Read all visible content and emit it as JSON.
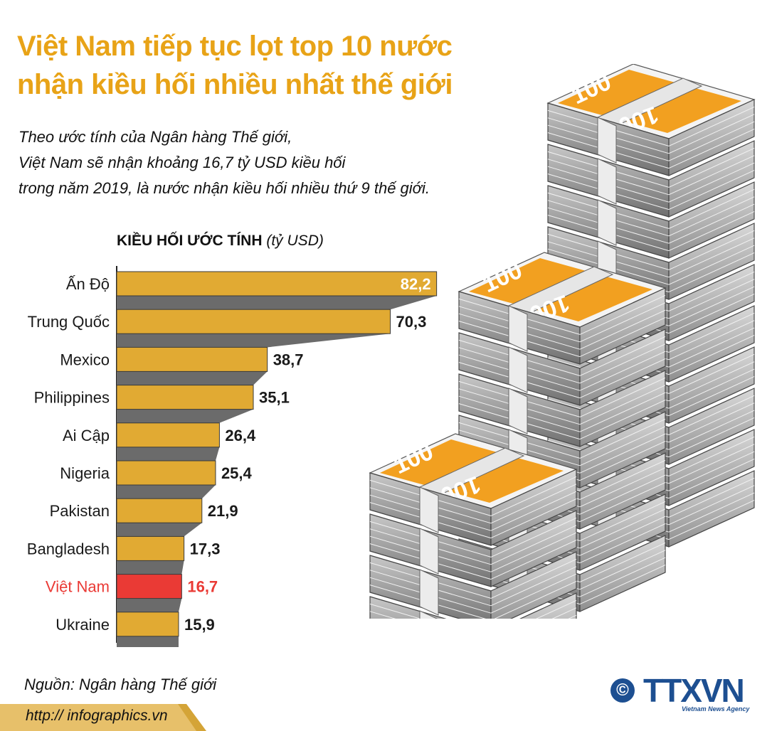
{
  "title": {
    "line1": "Việt Nam tiếp tục lọt top 10 nước",
    "line2": "nhận kiều hối nhiều nhất thế giới"
  },
  "subtitle": {
    "line1": "Theo ước tính của Ngân hàng Thế giới,",
    "line2": "Việt Nam sẽ nhận khoảng 16,7 tỷ USD kiều hối",
    "line3": "trong năm 2019, là nước nhận kiều hối nhiều thứ 9 thế giới."
  },
  "chart_header": {
    "label": "KIỀU HỐI ƯỚC TÍNH",
    "unit": "(tỷ USD)"
  },
  "chart_data": {
    "type": "bar",
    "orientation": "horizontal",
    "title": "KIỀU HỐI ƯỚC TÍNH (tỷ USD)",
    "categories": [
      "Ấn Độ",
      "Trung Quốc",
      "Mexico",
      "Philippines",
      "Ai Cập",
      "Nigeria",
      "Pakistan",
      "Bangladesh",
      "Việt Nam",
      "Ukraine"
    ],
    "values": [
      82.2,
      70.3,
      38.7,
      35.1,
      26.4,
      25.4,
      21.9,
      17.3,
      16.7,
      15.9
    ],
    "value_labels": [
      "82,2",
      "70,3",
      "38,7",
      "35,1",
      "26,4",
      "25,4",
      "21,9",
      "17,3",
      "16,7",
      "15,9"
    ],
    "highlight": "Việt Nam",
    "colors": {
      "bar": "#e1aa33",
      "bar_highlight": "#ea3a35",
      "shadow": "#6b6b6b",
      "label": "#1a1a1a",
      "label_highlight": "#ea3a35",
      "label_inside": "#ffffff"
    }
  },
  "banknote_labels": [
    "100",
    "100",
    "100"
  ],
  "source": "Nguồn: Ngân hàng Thế giới",
  "footer_url": "http:// infographics.vn",
  "logo": {
    "copyright": "©",
    "text": "TTXVN",
    "sub": "Vietnam News Agency"
  },
  "colors": {
    "title": "#e8a317",
    "money_orange": "#f2a020",
    "logo_blue": "#1d4f91",
    "footer_gold": "#d4a437"
  }
}
